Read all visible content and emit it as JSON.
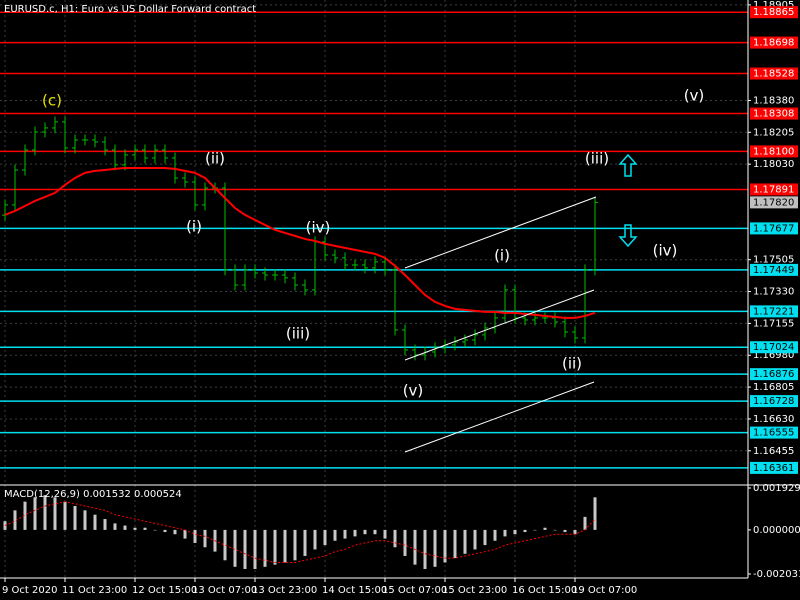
{
  "chart_data": {
    "type": "ohlc",
    "title": "EURUSD.c, H1:  Euro vs US Dollar Forward contract",
    "categories": [
      "9 Oct 2020",
      null,
      null,
      null,
      null,
      null,
      "11 Oct 23:00",
      null,
      null,
      null,
      null,
      null,
      null,
      "12 Oct 15:00",
      null,
      null,
      null,
      null,
      null,
      "13 Oct 07:00",
      null,
      null,
      null,
      null,
      null,
      "13 Oct 23:00",
      null,
      null,
      null,
      null,
      null,
      null,
      "14 Oct 15:00",
      null,
      null,
      null,
      null,
      null,
      "15 Oct 07:00",
      null,
      null,
      null,
      null,
      null,
      "15 Oct 23:00",
      null,
      null,
      null,
      null,
      null,
      null,
      "16 Oct 15:00",
      null,
      null,
      null,
      null,
      null,
      "19 Oct 07:00",
      null,
      null
    ],
    "open": [
      1.1775,
      1.17806,
      1.17998,
      1.18108,
      1.18207,
      1.18229,
      1.18262,
      1.18119,
      1.18163,
      1.18163,
      1.18152,
      1.18108,
      1.18026,
      1.18081,
      1.18108,
      1.18064,
      1.18108,
      1.18064,
      1.17954,
      1.17932,
      1.17806,
      1.17899,
      1.17899,
      1.17449,
      1.17366,
      1.17449,
      1.17432,
      1.17421,
      1.17421,
      1.17405,
      1.17366,
      1.17339,
      1.17603,
      1.17531,
      1.17515,
      1.17476,
      1.17476,
      1.1746,
      1.17493,
      1.17449,
      1.17119,
      1.17009,
      1.16982,
      1.16998,
      1.1702,
      1.17037,
      1.17053,
      1.17064,
      1.17092,
      1.1713,
      1.17185,
      1.17339,
      1.17185,
      1.17174,
      1.17185,
      1.17185,
      1.17163,
      1.17108,
      1.17075,
      1.17449
    ],
    "high": [
      1.17836,
      1.18028,
      1.18138,
      1.18237,
      1.18259,
      1.18292,
      1.18292,
      1.18193,
      1.18193,
      1.18193,
      1.18182,
      1.18138,
      1.18111,
      1.18138,
      1.18138,
      1.18138,
      1.18138,
      1.18094,
      1.17984,
      1.17962,
      1.17929,
      1.17929,
      1.17929,
      1.17479,
      1.17479,
      1.17479,
      1.17462,
      1.17451,
      1.17451,
      1.17435,
      1.17396,
      1.17633,
      1.17633,
      1.17561,
      1.17545,
      1.17506,
      1.17506,
      1.17523,
      1.17523,
      1.17479,
      1.17149,
      1.17039,
      1.17028,
      1.1705,
      1.17067,
      1.17083,
      1.17094,
      1.17122,
      1.1716,
      1.17215,
      1.17369,
      1.17369,
      1.17215,
      1.17215,
      1.17215,
      1.17215,
      1.17193,
      1.17138,
      1.17479,
      1.1785
    ],
    "low": [
      1.1772,
      1.17776,
      1.17968,
      1.18078,
      1.18177,
      1.18199,
      1.18089,
      1.18089,
      1.18133,
      1.18122,
      1.18078,
      1.17996,
      1.17996,
      1.18051,
      1.18034,
      1.18034,
      1.18034,
      1.17924,
      1.17902,
      1.17776,
      1.17776,
      1.17869,
      1.17419,
      1.17336,
      1.17336,
      1.17402,
      1.17391,
      1.17391,
      1.17375,
      1.17336,
      1.17309,
      1.17309,
      1.17501,
      1.17485,
      1.17446,
      1.17446,
      1.1743,
      1.1743,
      1.17419,
      1.17089,
      1.16979,
      1.16952,
      1.16952,
      1.16968,
      1.1699,
      1.17007,
      1.17023,
      1.17034,
      1.17062,
      1.171,
      1.17155,
      1.17155,
      1.17144,
      1.17144,
      1.17155,
      1.17133,
      1.17078,
      1.17045,
      1.17045,
      1.17419
    ],
    "close": [
      1.17806,
      1.17998,
      1.18108,
      1.18207,
      1.18229,
      1.18262,
      1.18119,
      1.18163,
      1.18163,
      1.18152,
      1.18108,
      1.18026,
      1.18081,
      1.18108,
      1.18064,
      1.18108,
      1.18064,
      1.17954,
      1.17932,
      1.17806,
      1.17899,
      1.17899,
      1.17449,
      1.17366,
      1.17449,
      1.17432,
      1.17421,
      1.17421,
      1.17405,
      1.17366,
      1.17339,
      1.17603,
      1.17531,
      1.17515,
      1.17476,
      1.17476,
      1.1746,
      1.17493,
      1.17449,
      1.17119,
      1.17009,
      1.16982,
      1.16998,
      1.1702,
      1.17037,
      1.17053,
      1.17064,
      1.17092,
      1.1713,
      1.17185,
      1.17339,
      1.17185,
      1.17174,
      1.17185,
      1.17185,
      1.17163,
      1.17108,
      1.17075,
      1.17449,
      1.1782
    ],
    "color": "#00c000",
    "ylim": [
      1.16278,
      1.18932
    ],
    "yticks": [
      {
        "value": 1.18905,
        "label": "1.18905"
      },
      {
        "value": 1.1838,
        "label": "1.18380"
      },
      {
        "value": 1.18205,
        "label": "1.18205"
      },
      {
        "value": 1.1803,
        "label": "1.18030"
      },
      {
        "value": 1.17505,
        "label": "1.17505"
      },
      {
        "value": 1.1733,
        "label": "1.17330"
      },
      {
        "value": 1.17155,
        "label": "1.17155"
      },
      {
        "value": 1.1698,
        "label": "1.16980"
      },
      {
        "value": 1.16805,
        "label": "1.16805"
      },
      {
        "value": 1.1663,
        "label": "1.16630"
      },
      {
        "value": 1.16455,
        "label": "1.16455"
      }
    ],
    "grid": true,
    "moving_average": {
      "color": "#ff0000",
      "values": [
        1.17751,
        1.17773,
        1.178,
        1.17828,
        1.1785,
        1.17872,
        1.17916,
        1.17954,
        1.17982,
        1.17993,
        1.17998,
        1.18004,
        1.18009,
        1.18009,
        1.18009,
        1.18009,
        1.18009,
        1.18004,
        1.17993,
        1.17982,
        1.17954,
        1.17899,
        1.17844,
        1.17789,
        1.17751,
        1.17724,
        1.17696,
        1.17669,
        1.17652,
        1.17636,
        1.17619,
        1.17608,
        1.17592,
        1.17581,
        1.1757,
        1.17559,
        1.17548,
        1.17537,
        1.17515,
        1.17471,
        1.17421,
        1.17366,
        1.17311,
        1.17273,
        1.17251,
        1.17235,
        1.17229,
        1.17224,
        1.17218,
        1.17218,
        1.17213,
        1.17213,
        1.17207,
        1.17202,
        1.17196,
        1.17191,
        1.17185,
        1.17185,
        1.17196,
        1.17213
      ]
    },
    "levels": [
      {
        "value": 1.18865,
        "label": "1.18865",
        "color": "#ff0000"
      },
      {
        "value": 1.18698,
        "label": "1.18698",
        "color": "#ff0000"
      },
      {
        "value": 1.18528,
        "label": "1.18528",
        "color": "#ff0000"
      },
      {
        "value": 1.18308,
        "label": "1.18308",
        "color": "#ff0000"
      },
      {
        "value": 1.181,
        "label": "1.18100",
        "color": "#ff0000"
      },
      {
        "value": 1.17891,
        "label": "1.17891",
        "color": "#ff0000"
      },
      {
        "value": 1.17677,
        "label": "1.17677",
        "color": "#00e0f0"
      },
      {
        "value": 1.17449,
        "label": "1.17449",
        "color": "#00e0f0"
      },
      {
        "value": 1.17221,
        "label": "1.17221",
        "color": "#00e0f0"
      },
      {
        "value": 1.17024,
        "label": "1.17024",
        "color": "#00e0f0"
      },
      {
        "value": 1.16876,
        "label": "1.16876",
        "color": "#00e0f0"
      },
      {
        "value": 1.16728,
        "label": "1.16728",
        "color": "#00e0f0"
      },
      {
        "value": 1.16555,
        "label": "1.16555",
        "color": "#00e0f0"
      },
      {
        "value": 1.16361,
        "label": "1.16361",
        "color": "#00e0f0"
      }
    ],
    "current_price": {
      "value": 1.1782,
      "label": "1.17820"
    },
    "annotations": [
      {
        "text": "(c)",
        "color": "#e8e000"
      },
      {
        "text": "(ii)",
        "color": "#ffffff"
      },
      {
        "text": "(i)",
        "color": "#ffffff"
      },
      {
        "text": "(iv)",
        "color": "#ffffff"
      },
      {
        "text": "(iii)",
        "color": "#ffffff"
      },
      {
        "text": "(v)",
        "color": "#ffffff"
      },
      {
        "text": "(i)",
        "color": "#ffffff"
      },
      {
        "text": "(ii)",
        "color": "#ffffff"
      },
      {
        "text": "(iii)",
        "color": "#ffffff"
      },
      {
        "text": "(iv)",
        "color": "#ffffff"
      },
      {
        "text": "(v)",
        "color": "#ffffff"
      }
    ],
    "indicator": {
      "type": "bar",
      "title": "MACD(12,26,9) 0.001532 0.000524",
      "ylim": [
        -0.002031,
        0.001929
      ],
      "yticks": [
        {
          "value": 0.001929,
          "label": "0.001929"
        },
        {
          "value": 0,
          "label": "0.000000"
        },
        {
          "value": -0.002031,
          "label": "-0.002031"
        }
      ],
      "histogram": {
        "color": "#c8c8c8",
        "values": [
          0.0004,
          0.0009,
          0.0013,
          0.0015,
          0.0016,
          0.0015,
          0.0013,
          0.0011,
          0.0009,
          0.0007,
          0.0005,
          0.0003,
          0.0002,
          0.0001,
          0.0001,
          0,
          -0.0001,
          -0.0002,
          -0.0004,
          -0.0006,
          -0.0008,
          -0.001,
          -0.0014,
          -0.0017,
          -0.0018,
          -0.0018,
          -0.0017,
          -0.0016,
          -0.0015,
          -0.0014,
          -0.0012,
          -0.0009,
          -0.0007,
          -0.0005,
          -0.0004,
          -0.0003,
          -0.0002,
          -0.0002,
          -0.0004,
          -0.0008,
          -0.0012,
          -0.0016,
          -0.0018,
          -0.0017,
          -0.0015,
          -0.0013,
          -0.0011,
          -0.0009,
          -0.0007,
          -0.0005,
          -0.0003,
          -0.0002,
          -0.0001,
          0,
          0.0001,
          0,
          -0.0001,
          -0.0002,
          0.0006,
          0.0015
        ]
      },
      "signal": {
        "color": "#ff0000",
        "values": [
          0.0002,
          0.0004,
          0.0007,
          0.0009,
          0.0011,
          0.0012,
          0.0013,
          0.0012,
          0.0011,
          0.001,
          0.0009,
          0.0007,
          0.0006,
          0.0005,
          0.0004,
          0.0003,
          0.0002,
          0.0001,
          0,
          -0.0002,
          -0.0003,
          -0.0005,
          -0.0007,
          -0.0009,
          -0.0011,
          -0.0013,
          -0.0014,
          -0.0015,
          -0.0015,
          -0.0015,
          -0.0014,
          -0.0013,
          -0.0012,
          -0.001,
          -0.0009,
          -0.0007,
          -0.0006,
          -0.0005,
          -0.0005,
          -0.0006,
          -0.0007,
          -0.0009,
          -0.0011,
          -0.0012,
          -0.0013,
          -0.0013,
          -0.0012,
          -0.0011,
          -0.001,
          -0.0009,
          -0.0007,
          -0.0006,
          -0.0005,
          -0.0004,
          -0.0003,
          -0.0002,
          -0.0002,
          -0.0002,
          0,
          0.0005
        ]
      }
    }
  }
}
